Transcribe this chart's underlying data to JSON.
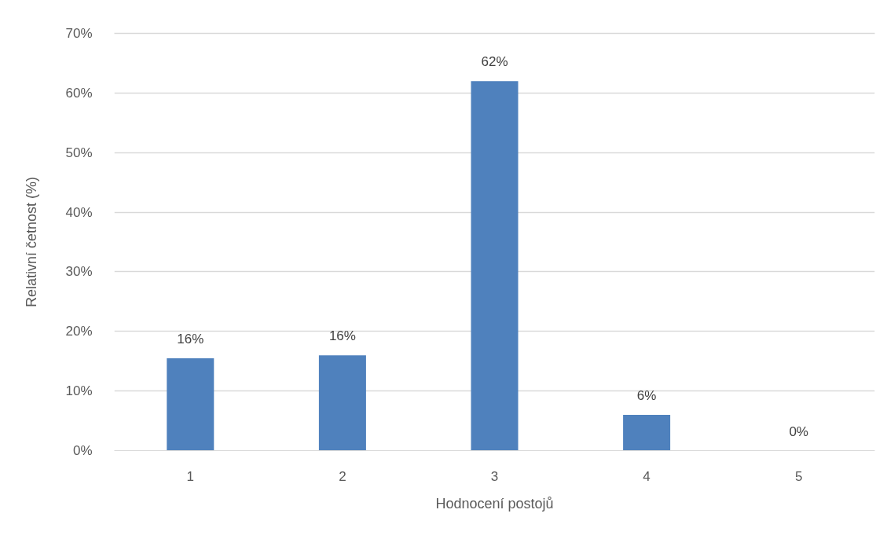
{
  "chart_data": {
    "type": "bar",
    "xlabel": "Hodnocení postojů",
    "ylabel": "Relativní četnost (%)",
    "categories": [
      "1",
      "2",
      "3",
      "4",
      "5"
    ],
    "values": [
      15.5,
      16,
      62,
      6,
      0
    ],
    "color": "#4f81bd",
    "value_labels": [
      "16%",
      "16%",
      "62%",
      "6%",
      "0%"
    ],
    "ylim": [
      0,
      70
    ],
    "yticks": [
      {
        "value": 0,
        "label": "0%"
      },
      {
        "value": 10,
        "label": "10%"
      },
      {
        "value": 20,
        "label": "20%"
      },
      {
        "value": 30,
        "label": "30%"
      },
      {
        "value": 40,
        "label": "40%"
      },
      {
        "value": 50,
        "label": "50%"
      },
      {
        "value": 60,
        "label": "60%"
      },
      {
        "value": 70,
        "label": "70%"
      }
    ],
    "grid": "y"
  }
}
